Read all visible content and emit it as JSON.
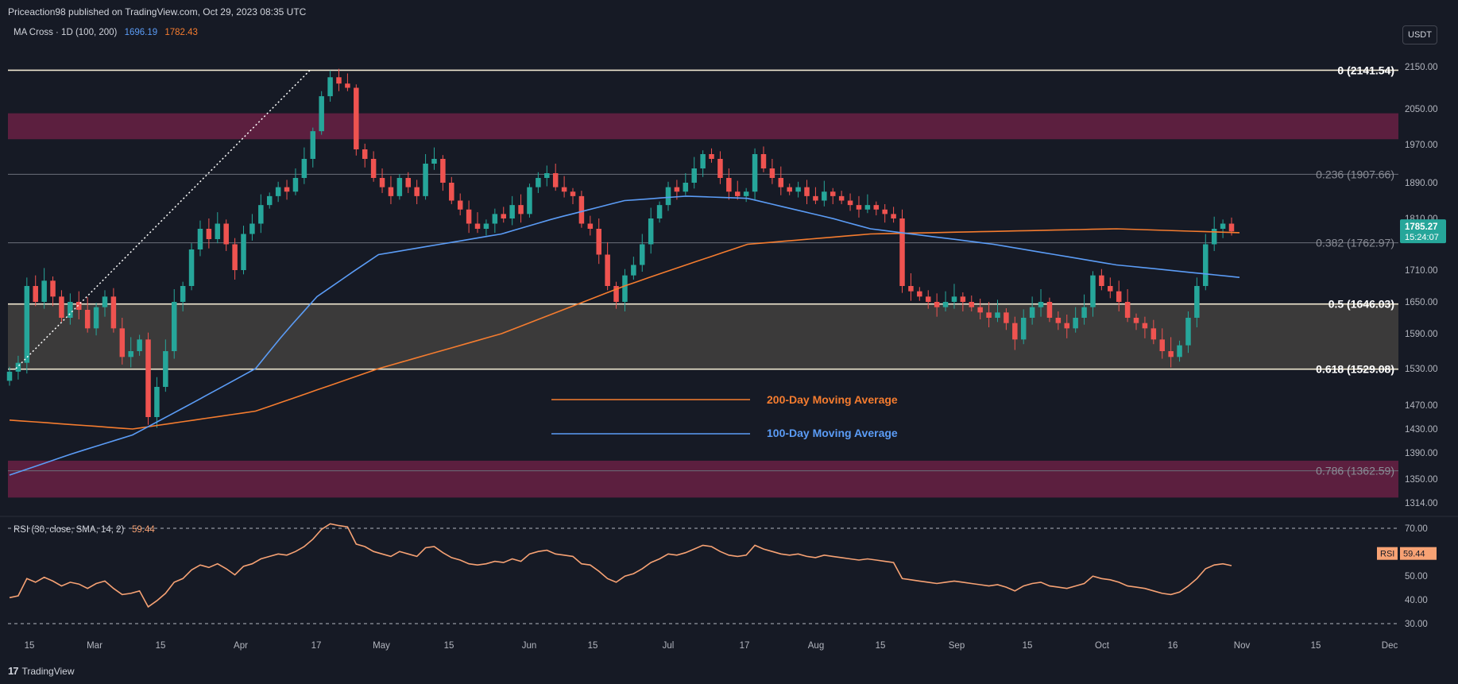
{
  "header": {
    "publisher": "Priceaction98 published on TradingView.com, Oct 29, 2023 08:35 UTC",
    "indicator_name": "MA Cross · 1D (100, 200)",
    "indicator_val1": "1696.19",
    "indicator_val2": "1782.43",
    "currency": "USDT"
  },
  "footer": {
    "brand": "TradingView",
    "logo": "17"
  },
  "colors": {
    "background": "#161a25",
    "up": "#26a69a",
    "down": "#ef5350",
    "ma100": "#5b9cf6",
    "ma200": "#f57c2f",
    "zone": "#5c1f3f",
    "golden_zone": "#3b3a3a",
    "rsi": "#f7a274"
  },
  "legend": {
    "ma200": "200-Day Moving Average",
    "ma100": "100-Day Moving Average"
  },
  "fib_levels": [
    {
      "label": "0 (2141.54)",
      "value": 2141.54,
      "style": "strong"
    },
    {
      "label": "0.236 (1907.66)",
      "value": 1907.66,
      "style": "weak"
    },
    {
      "label": "0.382 (1762.97)",
      "value": 1762.97,
      "style": "weak"
    },
    {
      "label": "0.5 (1646.03)",
      "value": 1646.03,
      "style": "strong"
    },
    {
      "label": "0.618 (1529.08)",
      "value": 1529.08,
      "style": "strong"
    },
    {
      "label": "0.786 (1362.59)",
      "value": 1362.59,
      "style": "weak"
    }
  ],
  "price_tag": {
    "price": "1785.27",
    "countdown": "15:24:07",
    "value": 1785.27
  },
  "rsi_panel": {
    "title": "RSI (30, close, SMA, 14, 2)",
    "value_label": "59.44",
    "tag_name": "RSI",
    "value": 59.44
  },
  "chart_data": [
    {
      "type": "candlestick",
      "ylim": [
        1314,
        2185
      ],
      "y_ticks": [
        "2150.00",
        "2050.00",
        "1970.00",
        "1890.00",
        "1810.00",
        "1710.00",
        "1650.00",
        "1590.00",
        "1530.00",
        "1470.00",
        "1430.00",
        "1390.00",
        "1350.00",
        "1314.00"
      ],
      "x_ticks": [
        "15",
        "Mar",
        "15",
        "Apr",
        "17",
        "May",
        "15",
        "Jun",
        "15",
        "Jul",
        "17",
        "Aug",
        "15",
        "Sep",
        "15",
        "Oct",
        "16",
        "Nov",
        "15",
        "Dec"
      ],
      "resistance_zones": [
        [
          1982,
          2040
        ],
        [
          1322,
          1378
        ]
      ],
      "golden_zone": [
        1529.08,
        1646.03
      ],
      "close_sequence": [
        1525,
        1540,
        1680,
        1650,
        1690,
        1660,
        1620,
        1650,
        1635,
        1600,
        1640,
        1660,
        1600,
        1550,
        1560,
        1580,
        1450,
        1500,
        1560,
        1650,
        1680,
        1750,
        1790,
        1770,
        1800,
        1760,
        1710,
        1780,
        1800,
        1840,
        1860,
        1880,
        1870,
        1900,
        1940,
        2000,
        2080,
        2125,
        2110,
        2100,
        1960,
        1940,
        1900,
        1880,
        1860,
        1900,
        1880,
        1860,
        1930,
        1940,
        1890,
        1850,
        1830,
        1800,
        1790,
        1800,
        1820,
        1810,
        1840,
        1820,
        1880,
        1900,
        1910,
        1880,
        1870,
        1860,
        1800,
        1790,
        1740,
        1680,
        1650,
        1700,
        1720,
        1760,
        1810,
        1840,
        1880,
        1870,
        1890,
        1920,
        1950,
        1940,
        1900,
        1870,
        1860,
        1870,
        1950,
        1920,
        1900,
        1880,
        1870,
        1880,
        1860,
        1850,
        1870,
        1860,
        1850,
        1840,
        1830,
        1840,
        1830,
        1820,
        1810,
        1680,
        1670,
        1660,
        1650,
        1640,
        1650,
        1660,
        1650,
        1640,
        1630,
        1620,
        1630,
        1610,
        1580,
        1620,
        1640,
        1650,
        1620,
        1610,
        1600,
        1620,
        1640,
        1700,
        1680,
        1670,
        1650,
        1620,
        1610,
        1600,
        1580,
        1560,
        1550,
        1570,
        1620,
        1680,
        1760,
        1790,
        1800,
        1785
      ],
      "ma100": {
        "name": "100-Day Moving Average",
        "start": 1356,
        "end": 1696.19
      },
      "ma200": {
        "name": "200-Day Moving Average",
        "start": 1445,
        "end": 1782.43
      }
    },
    {
      "type": "line",
      "ylim": [
        30,
        70
      ],
      "y_ticks": [
        "70.00",
        "50.00",
        "40.00",
        "30.00"
      ],
      "series": [
        {
          "name": "RSI",
          "last": 59.44
        }
      ]
    }
  ]
}
